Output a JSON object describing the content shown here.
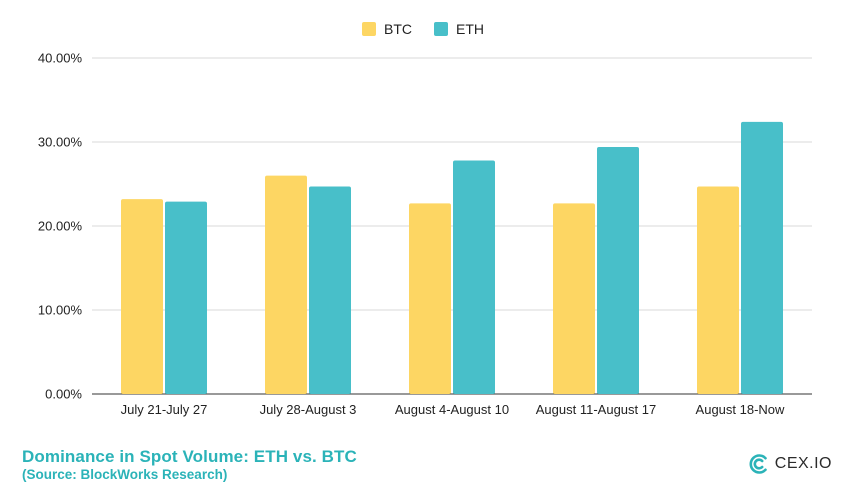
{
  "chart_data": {
    "type": "bar",
    "title": "",
    "xlabel": "",
    "ylabel": "",
    "categories": [
      "July 21-July 27",
      "July 28-August 3",
      "August 4-August 10",
      "August 11-August 17",
      "August 18-Now"
    ],
    "series": [
      {
        "name": "BTC",
        "color": "#fdd663",
        "values": [
          23.2,
          26.0,
          22.7,
          22.7,
          24.7
        ]
      },
      {
        "name": "ETH",
        "color": "#48bfc9",
        "values": [
          22.9,
          24.7,
          27.8,
          29.4,
          32.4
        ]
      }
    ],
    "ylim": [
      0,
      40
    ],
    "yticks": [
      "0.00%",
      "10.00%",
      "20.00%",
      "30.00%",
      "40.00%"
    ],
    "ytick_values": [
      0,
      10,
      20,
      30,
      40
    ],
    "grid": true,
    "legend": "top-center"
  },
  "footer": {
    "title": "Dominance in Spot Volume: ETH vs. BTC",
    "source": "(Source: BlockWorks Research)"
  },
  "brand": {
    "name": "CEX.IO",
    "icon": "cex-logo-icon",
    "color": "#2bb3b8"
  }
}
